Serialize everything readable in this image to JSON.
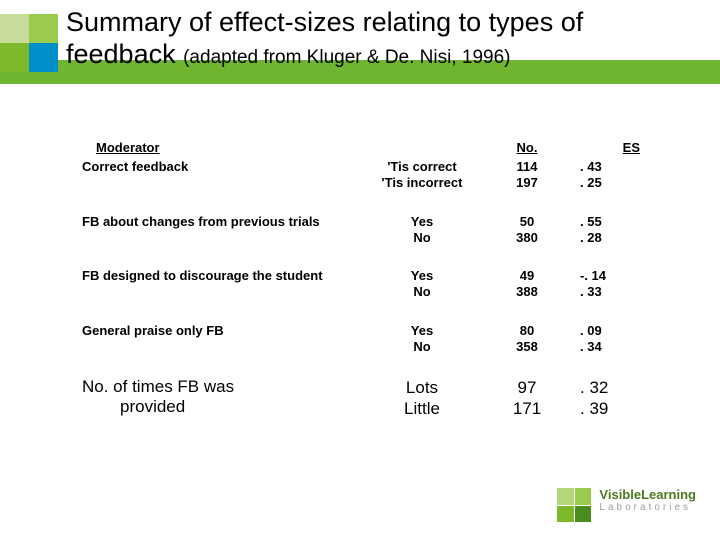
{
  "title_line1": "Summary of effect-sizes relating to types of",
  "title_line2a": "feedback",
  "title_line2b": "(adapted from Kluger & De. Nisi, 1996)",
  "headers": {
    "moderator": "Moderator",
    "no": "No.",
    "es": "ES"
  },
  "rows": [
    {
      "label": "Correct feedback",
      "cond": [
        "'Tis correct",
        "'Tis incorrect"
      ],
      "no": [
        "114",
        "197"
      ],
      "es": [
        ". 43",
        ". 25"
      ],
      "label_bold": true
    },
    {
      "label": "FB about changes from previous trials",
      "cond": [
        "Yes",
        "No"
      ],
      "no": [
        "50",
        "380"
      ],
      "es": [
        ". 55",
        ". 28"
      ],
      "label_bold": true
    },
    {
      "label": "FB designed to discourage the student",
      "cond": [
        "Yes",
        "No"
      ],
      "no": [
        "49",
        "388"
      ],
      "es": [
        "-. 14",
        ". 33"
      ],
      "label_bold": true
    },
    {
      "label": "General praise only FB",
      "cond": [
        "Yes",
        "No"
      ],
      "no": [
        "80",
        "358"
      ],
      "es": [
        ". 09",
        ". 34"
      ],
      "label_bold": true
    }
  ],
  "lastrow": {
    "label1": "No. of times FB was",
    "label2": "provided",
    "cond": [
      "Lots",
      "Little"
    ],
    "no": [
      "97",
      "171"
    ],
    "es": [
      ". 32",
      ". 39"
    ]
  },
  "logo": {
    "l1": "VisibleLearning",
    "l2": "Laboratories"
  },
  "colors": {
    "accent_green": "#6fb52f",
    "square_tl": "#c8dc9a",
    "square_tr": "#9acb4c",
    "square_bl": "#7cba2c",
    "square_br": "#0090c9"
  }
}
